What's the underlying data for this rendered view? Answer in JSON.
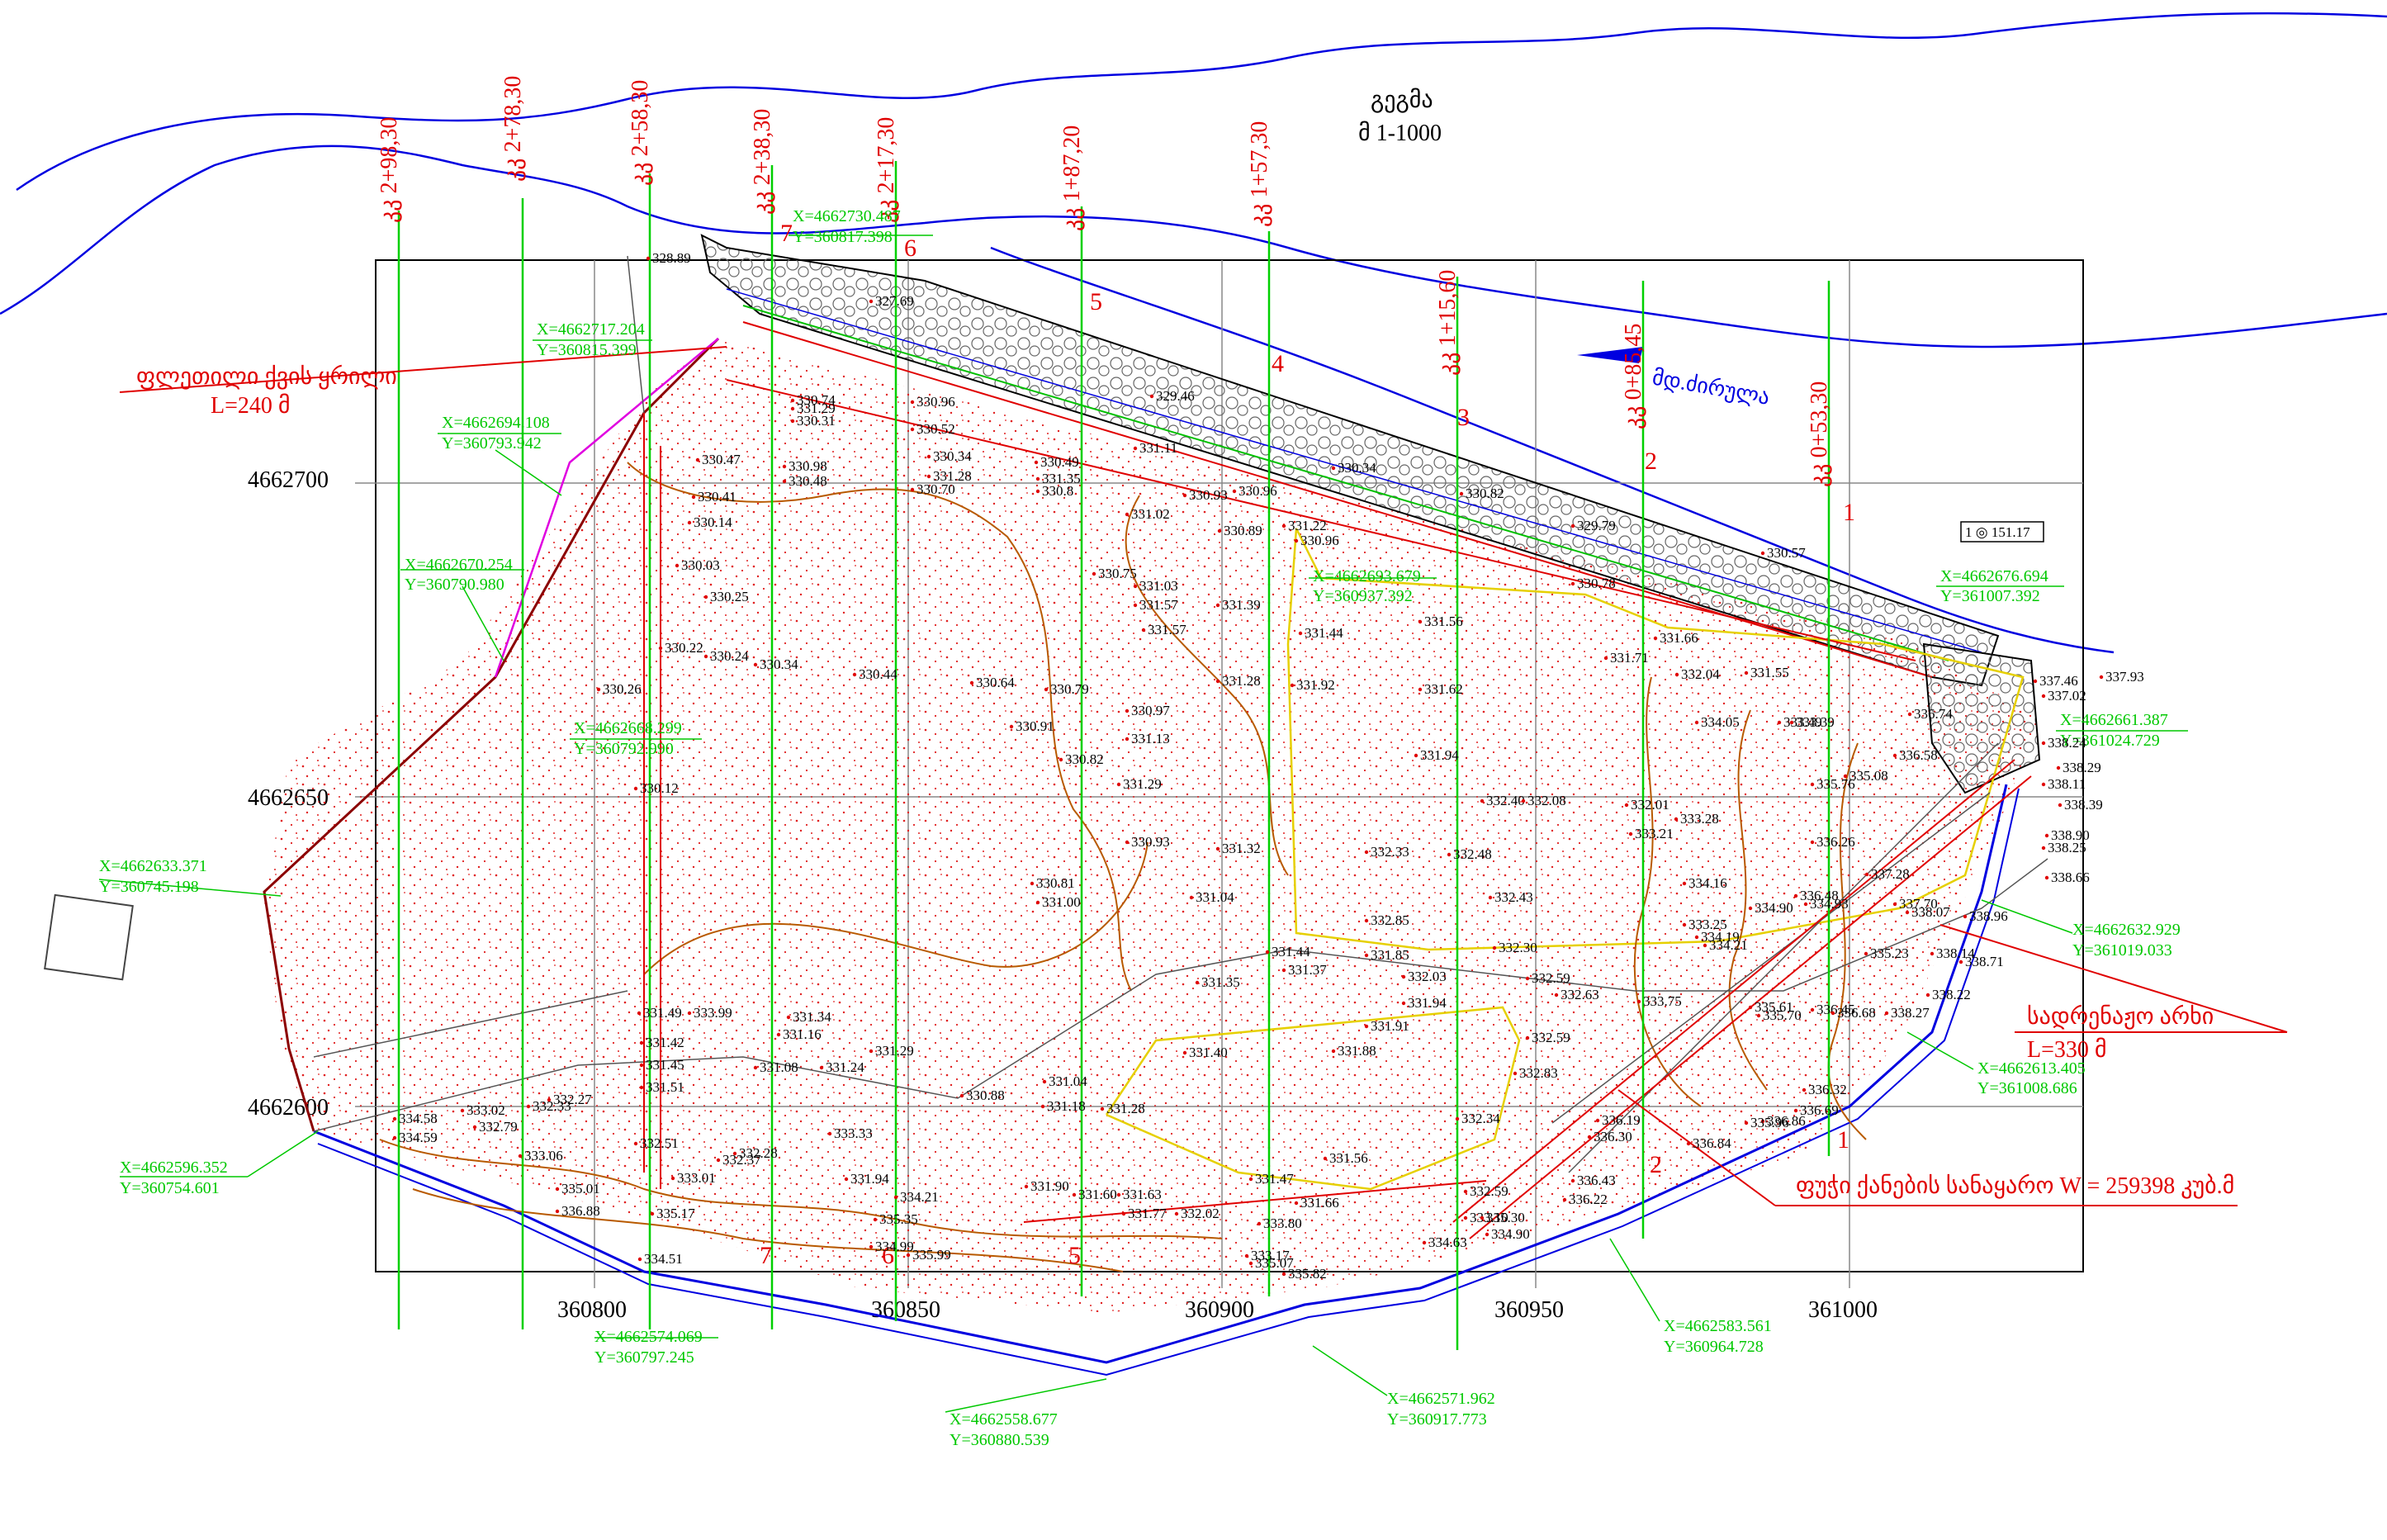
{
  "title": {
    "line1": "გეგმა",
    "line2": "მ 1-1000"
  },
  "river_label": "მდ.ძირულა",
  "sections": [
    {
      "label": "კკ 2+98,30",
      "num": ""
    },
    {
      "label": "კკ 2+78,30",
      "num": ""
    },
    {
      "label": "კკ 2+58,30",
      "num": ""
    },
    {
      "label": "კკ 2+38,30",
      "num": "7"
    },
    {
      "label": "კკ 2+17,30",
      "num": "6"
    },
    {
      "label": "კკ 1+87,20",
      "num": "5"
    },
    {
      "label": "კკ 1+57,30",
      "num": "4"
    },
    {
      "label": "კკ 1+15,60",
      "num": "3"
    },
    {
      "label": "კკ 0+85,45",
      "num": "2"
    },
    {
      "label": "კკ 0+53,30",
      "num": "1"
    }
  ],
  "grid": {
    "y_labels": [
      "4662700",
      "4662650",
      "4662600"
    ],
    "x_labels": [
      "360800",
      "360850",
      "360900",
      "360950",
      "361000"
    ]
  },
  "annotations": {
    "stone_dam": "ფლეთილი ქვის ყრილი",
    "stone_dam_len": "L=240 მ",
    "drainage": "სადრენაჟო არხი",
    "drainage_len": "L=330 მ",
    "fill_volume": "ფუჭი ქანების სანაყარო W = 259398 კუბ.მ",
    "benchmark": "1 ◎ 151.17"
  },
  "coords": [
    {
      "x": "X=4662730.487",
      "y": "Y=360817.398"
    },
    {
      "x": "X=4662717.204",
      "y": "Y=360815.399"
    },
    {
      "x": "X=4662694.108",
      "y": "Y=360793.942"
    },
    {
      "x": "X=4662670.254",
      "y": "Y=360790.980"
    },
    {
      "x": "X=4662668.299",
      "y": "Y=360792.990"
    },
    {
      "x": "X=4662633.371",
      "y": "Y=360745.198"
    },
    {
      "x": "X=4662596.352",
      "y": "Y=360754.601"
    },
    {
      "x": "X=4662574.069",
      "y": "Y=360797.245"
    },
    {
      "x": "X=4662558.677",
      "y": "Y=360880.539"
    },
    {
      "x": "X=4662571.962",
      "y": "Y=360917.773"
    },
    {
      "x": "X=4662583.561",
      "y": "Y=360964.728"
    },
    {
      "x": "X=4662613.405",
      "y": "Y=361008.686"
    },
    {
      "x": "X=4662632.929",
      "y": "Y=361019.033"
    },
    {
      "x": "X=4662661.387",
      "y": "Y=361024.729"
    },
    {
      "x": "X=4662676.694",
      "y": "Y=361007.392"
    },
    {
      "x": "X=4662693.679",
      "y": "Y=360937.392"
    }
  ],
  "elevations": [
    "328.89",
    "327.69",
    "330.74",
    "331.29",
    "330.96",
    "330.31",
    "330.98",
    "330.48",
    "330.47",
    "330.52",
    "330.34",
    "331.28",
    "330.70",
    "330.49",
    "330.8",
    "331.35",
    "331.11",
    "329.46",
    "330.34",
    "330.82",
    "330.41",
    "330.14",
    "331.02",
    "330.93",
    "330.96",
    "331.22",
    "330.89",
    "330.96",
    "329.79",
    "330.57",
    "330.03",
    "330.25",
    "330.75",
    "331.03",
    "331.57",
    "331.39",
    "331.44",
    "331.56",
    "331.57",
    "330.78",
    "330.22",
    "330.24",
    "330.34",
    "330.44",
    "330.64",
    "330.79",
    "330.97",
    "331.28",
    "331.92",
    "331.62",
    "331.71",
    "332.04",
    "331.55",
    "331.66",
    "330.26",
    "330.12",
    "330.91",
    "331.13",
    "330.82",
    "331.29",
    "331.94",
    "332.40",
    "332.08",
    "332.01",
    "333.28",
    "333.21",
    "330.93",
    "331.32",
    "332.33",
    "332.48",
    "330.81",
    "331.00",
    "331.04",
    "332.85",
    "332.43",
    "332.30",
    "331.44",
    "331.37",
    "331.85",
    "332.03",
    "332.59",
    "332.63",
    "333.75",
    "331.35",
    "331.94",
    "331.49",
    "331.42",
    "331.45",
    "331.51",
    "333.99",
    "331.34",
    "331.16",
    "331.08",
    "331.24",
    "331.29",
    "330.88",
    "331.04",
    "331.18",
    "331.28",
    "331.40",
    "331.91",
    "331.88",
    "332.83",
    "332.59",
    "332.34",
    "334.58",
    "334.59",
    "333.02",
    "332.79",
    "332.33",
    "332.27",
    "333.06",
    "332.51",
    "333.01",
    "332.37",
    "332.28",
    "333.33",
    "331.94",
    "331.90",
    "331.60",
    "331.63",
    "331.77",
    "332.02",
    "331.47",
    "331.56",
    "331.66",
    "332.59",
    "333.10",
    "335.30",
    "334.90",
    "336.43",
    "336.22",
    "336.30",
    "336.19",
    "336.84",
    "336.86",
    "335.96",
    "336.69",
    "336.32",
    "335.61",
    "335.70",
    "336.45",
    "336.68",
    "337.28",
    "337.70",
    "338.07",
    "338.14",
    "338.22",
    "338.27",
    "338.71",
    "338.96",
    "338.66",
    "338.90",
    "338.39",
    "338.25",
    "338.11",
    "338.24",
    "338.29",
    "337.93",
    "337.46",
    "337.02",
    "336.74",
    "336.58",
    "335.08",
    "335.76",
    "336.26",
    "336.48",
    "334.90",
    "334.93",
    "335.23",
    "334.16",
    "334.19",
    "334.21",
    "333.25",
    "333.49",
    "333.39",
    "334.05",
    "335.01",
    "336.88",
    "334.51",
    "335.17",
    "335.35",
    "334.99",
    "335.99",
    "334.21",
    "333.80",
    "333.17",
    "335.82",
    "335.07",
    "334.63"
  ]
}
